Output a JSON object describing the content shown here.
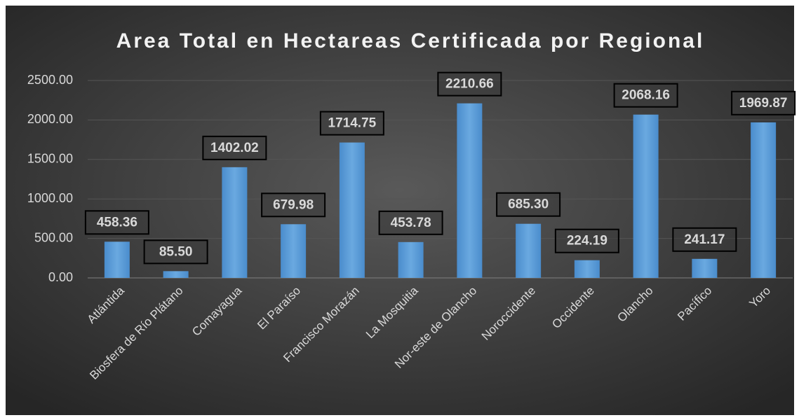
{
  "chart_data": {
    "type": "bar",
    "title": "Area Total en Hectareas Certificada por Regional",
    "categories": [
      "Atlántida",
      "Biosfera de Río Plátano",
      "Comayagua",
      "El Paraíso",
      "Francisco Morazán",
      "La Mosquitia",
      "Nor-este de Olancho",
      "Noroccidente",
      "Occidente",
      "Olancho",
      "Pacífico",
      "Yoro"
    ],
    "values": [
      458.36,
      85.5,
      1402.02,
      679.98,
      1714.75,
      453.78,
      2210.66,
      685.3,
      224.19,
      2068.16,
      241.17,
      1969.87
    ],
    "value_labels": [
      "458.36",
      "85.50",
      "1402.02",
      "679.98",
      "1714.75",
      "453.78",
      "2210.66",
      "685.30",
      "224.19",
      "2068.16",
      "241.17",
      "1969.87"
    ],
    "color": "#5b9bd5",
    "ylim": [
      0,
      2500
    ],
    "yticks": [
      {
        "value": 0,
        "label": "0.00"
      },
      {
        "value": 500,
        "label": "500.00"
      },
      {
        "value": 1000,
        "label": "1000.00"
      },
      {
        "value": 1500,
        "label": "1500.00"
      },
      {
        "value": 2000,
        "label": "2000.00"
      },
      {
        "value": 2500,
        "label": "2500.00"
      }
    ],
    "grid": true
  }
}
